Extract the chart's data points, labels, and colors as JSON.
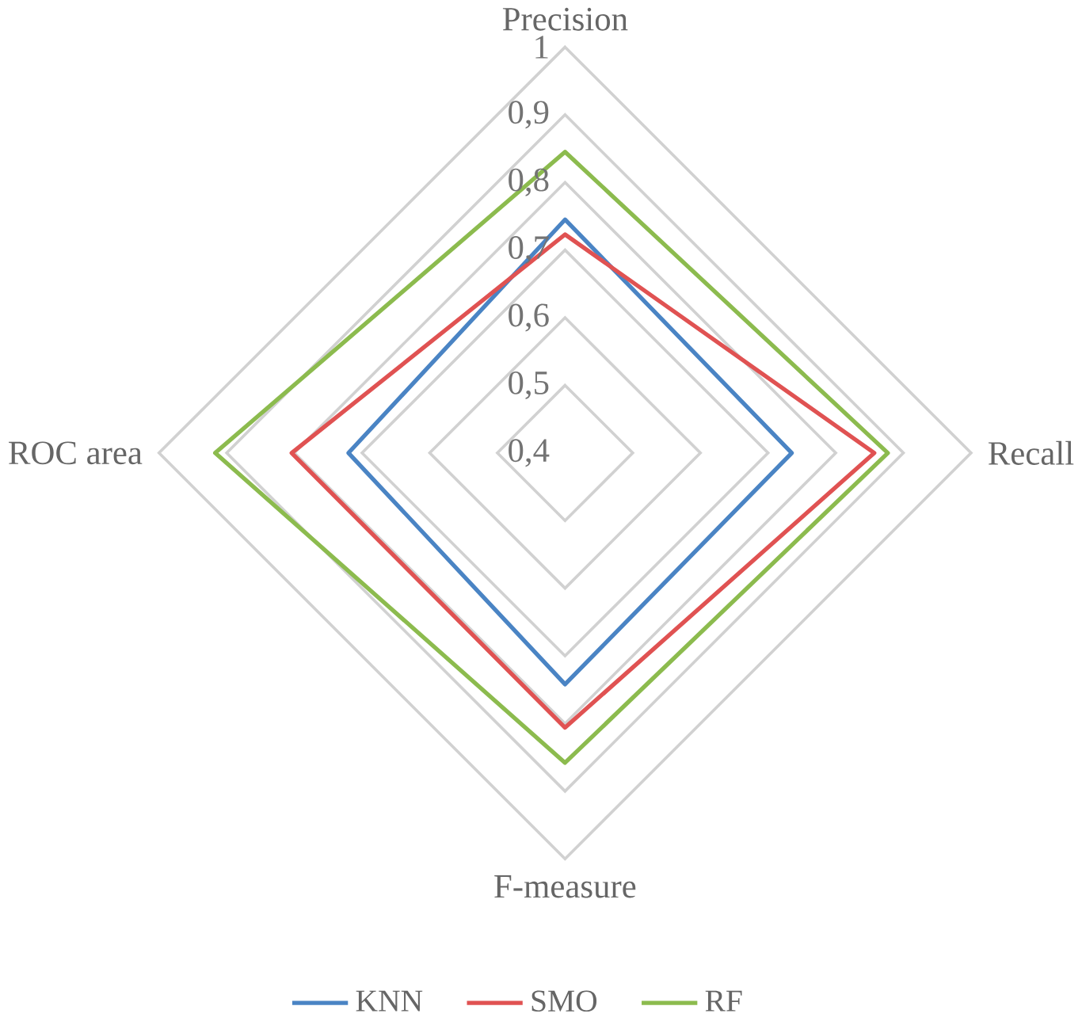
{
  "chart_data": {
    "type": "radar",
    "categories": [
      "Precision",
      "Recall",
      "F-measure",
      "ROC area"
    ],
    "series": [
      {
        "name": "KNN",
        "color": "#4a84c4",
        "values": [
          0.745,
          0.735,
          0.742,
          0.72
        ]
      },
      {
        "name": "SMO",
        "color": "#e05252",
        "values": [
          0.723,
          0.857,
          0.806,
          0.804
        ]
      },
      {
        "name": "RF",
        "color": "#8cbb4e",
        "values": [
          0.845,
          0.877,
          0.858,
          0.917
        ]
      }
    ],
    "ylim": [
      0.4,
      1
    ],
    "yticks": [
      {
        "value": 0.4,
        "label": "0,4"
      },
      {
        "value": 0.5,
        "label": "0,5"
      },
      {
        "value": 0.6,
        "label": "0,6"
      },
      {
        "value": 0.7,
        "label": "0,7"
      },
      {
        "value": 0.8,
        "label": "0,8"
      },
      {
        "value": 0.9,
        "label": "0,9"
      },
      {
        "value": 1,
        "label": "1"
      }
    ],
    "grid": true,
    "legend": "bottom"
  }
}
